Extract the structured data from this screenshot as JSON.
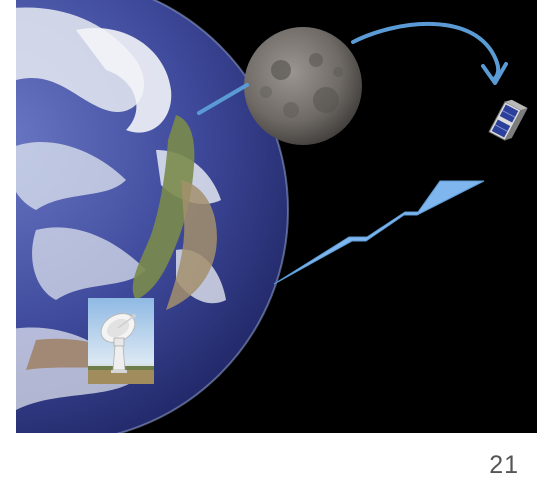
{
  "slide": {
    "page_number": "21"
  },
  "scene": {
    "background_color": "#000000",
    "arrow_color": "#5b9bd5",
    "signal_color": "#7fb6ee",
    "objects": [
      "earth",
      "moon",
      "satellite-icon",
      "radio-dish-icon",
      "signal-bolt"
    ]
  }
}
